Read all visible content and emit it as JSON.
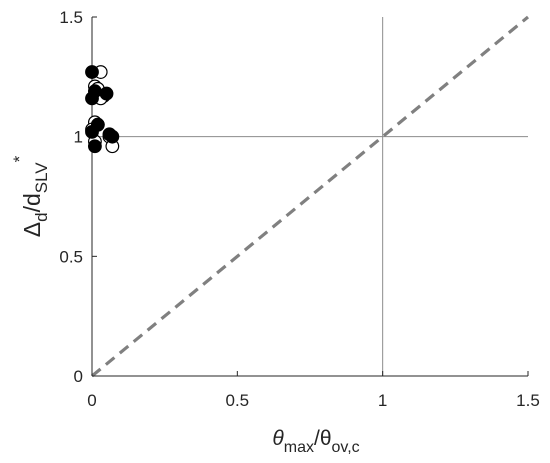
{
  "chart_data": {
    "type": "scatter",
    "xlim": [
      0,
      1.5
    ],
    "ylim": [
      0,
      1.5
    ],
    "xticks": [
      0,
      0.5,
      1,
      1.5
    ],
    "yticks": [
      0,
      0.5,
      1,
      1.5
    ],
    "xtick_labels": [
      "0",
      "0.5",
      "1",
      "1.5"
    ],
    "ytick_labels": [
      "0",
      "0.5",
      "1",
      "1.5"
    ],
    "xlabel": {
      "base": "θ",
      "sub1": "max",
      "sep": "/θ",
      "sub2": "ov,c"
    },
    "ylabel": {
      "base": "Δ",
      "sub1": "d",
      "sep": "/d",
      "sub2": "SLV",
      "sup": "*"
    },
    "reference_lines": {
      "vertical_x": 1,
      "horizontal_y": 1,
      "diagonal": "y = x (dashed)"
    },
    "series": [
      {
        "marker": "open-circle",
        "points": [
          {
            "x": 0.03,
            "y": 1.27
          },
          {
            "x": 0.01,
            "y": 1.21
          },
          {
            "x": 0.02,
            "y": 1.2
          },
          {
            "x": 0.04,
            "y": 1.17
          },
          {
            "x": 0.03,
            "y": 1.16
          },
          {
            "x": 0.01,
            "y": 1.06
          },
          {
            "x": 0.02,
            "y": 1.05
          },
          {
            "x": 0.0,
            "y": 1.03
          },
          {
            "x": 0.06,
            "y": 1.0
          },
          {
            "x": 0.07,
            "y": 0.96
          },
          {
            "x": 0.01,
            "y": 0.98
          }
        ]
      },
      {
        "marker": "filled-circle",
        "points": [
          {
            "x": 0.0,
            "y": 1.27
          },
          {
            "x": 0.01,
            "y": 1.19
          },
          {
            "x": 0.0,
            "y": 1.16
          },
          {
            "x": 0.05,
            "y": 1.18
          },
          {
            "x": 0.02,
            "y": 1.05
          },
          {
            "x": 0.0,
            "y": 1.02
          },
          {
            "x": 0.06,
            "y": 1.01
          },
          {
            "x": 0.07,
            "y": 1.0
          },
          {
            "x": 0.01,
            "y": 0.96
          }
        ]
      }
    ]
  }
}
